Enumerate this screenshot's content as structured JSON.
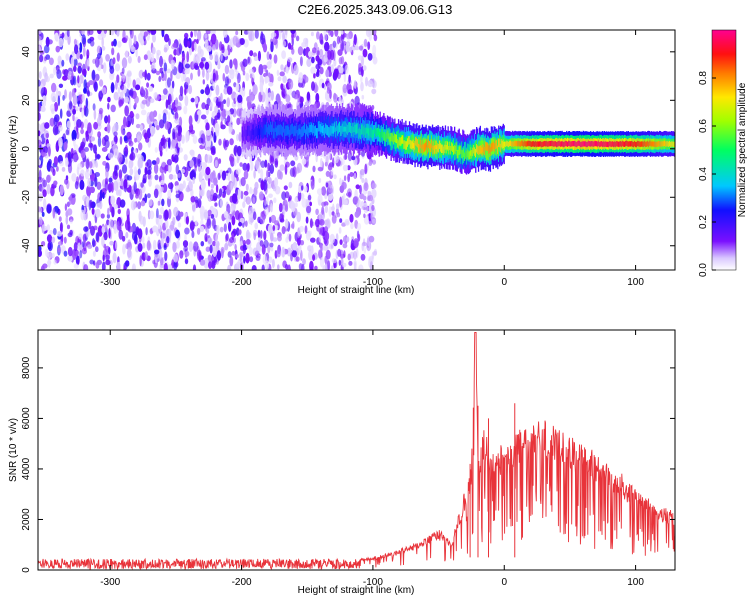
{
  "figure": {
    "title": "C2E6.2025.343.09.06.G13"
  },
  "chart_data": [
    {
      "type": "heatmap",
      "title": "C2E6.2025.343.09.06.G13",
      "xlabel": "Height of straight line (km)",
      "ylabel": "Frequency (Hz)",
      "xlim": [
        -355,
        130
      ],
      "ylim": [
        -50,
        49
      ],
      "xticks": [
        -300,
        -200,
        -100,
        0,
        100
      ],
      "yticks": [
        -40,
        -20,
        0,
        20,
        40
      ],
      "colorbar": {
        "label": "Normalized spectral amplitude",
        "range": [
          0,
          1
        ],
        "ticks": [
          0.0,
          0.2,
          0.4,
          0.6,
          0.8
        ],
        "colormap": "rainbow (white, violet, blue, cyan, green, yellow, red, magenta)"
      },
      "ridge": {
        "x": [
          -200,
          -180,
          -160,
          -140,
          -120,
          -100,
          -80,
          -60,
          -40,
          -30,
          -20,
          -10,
          0,
          20,
          40,
          60,
          80,
          100,
          130
        ],
        "y": [
          6,
          8,
          7,
          8,
          8,
          7,
          3,
          1,
          0,
          -2,
          0,
          0,
          2,
          2,
          2,
          2,
          2,
          2,
          2
        ],
        "amplitude": [
          0.15,
          0.3,
          0.3,
          0.35,
          0.4,
          0.45,
          0.65,
          0.8,
          0.65,
          0.55,
          0.75,
          0.8,
          0.7,
          0.9,
          0.95,
          0.98,
          0.95,
          0.9,
          0.7
        ]
      }
    },
    {
      "type": "line",
      "xlabel": "Height of straight line (km)",
      "ylabel": "SNR (10 * v/v)",
      "xlim": [
        -355,
        130
      ],
      "ylim": [
        0,
        9500
      ],
      "xticks": [
        -300,
        -200,
        -100,
        0,
        100
      ],
      "yticks": [
        0,
        2000,
        4000,
        6000,
        8000
      ],
      "color": "#e8333a",
      "series": [
        {
          "x": [
            -355,
            -300,
            -250,
            -200,
            -150,
            -120,
            -100,
            -80,
            -60,
            -50,
            -40,
            -30,
            -25,
            -22,
            -20,
            -15,
            -10,
            -5,
            0,
            10,
            20,
            30,
            40,
            50,
            60,
            80,
            100,
            110,
            120,
            130
          ],
          "values": [
            250,
            250,
            250,
            250,
            280,
            320,
            450,
            700,
            1100,
            1400,
            1000,
            2800,
            3600,
            9400,
            4000,
            5000,
            3900,
            4500,
            4200,
            4800,
            5100,
            5200,
            4900,
            4600,
            4400,
            3700,
            2900,
            2500,
            2200,
            2000
          ]
        }
      ]
    }
  ]
}
